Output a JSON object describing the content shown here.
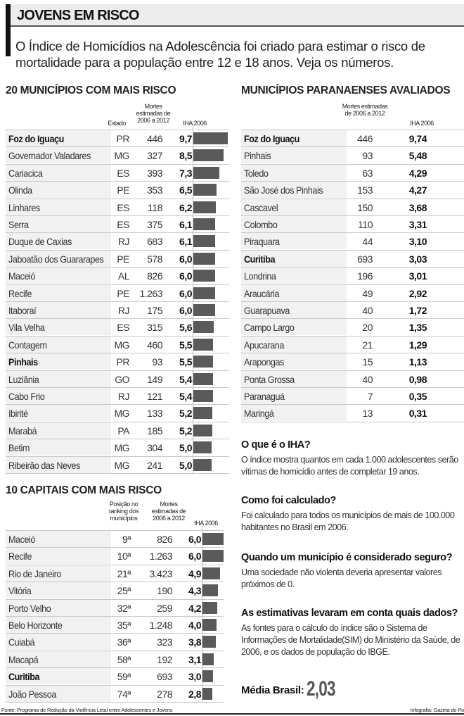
{
  "header": {
    "title": "JOVENS EM RISCO",
    "intro": "O Índice de Homicídios na Adolescência foi criado para estimar o risco de mortalidade para a população entre 12 e 18 anos. Veja os números."
  },
  "labels": {
    "estado": "Estado",
    "mortes": "Mortes estimadas de 2006 a 2012",
    "iha": "IHA 2006",
    "posicao": "Posição no ranking dos municípios"
  },
  "chart_data": [
    {
      "type": "bar",
      "title": "20 MUNICÍPIOS COM MAIS RISCO",
      "columns": [
        "",
        "Estado",
        "Mortes estimadas de 2006 a 2012",
        "IHA 2006"
      ],
      "rows": [
        {
          "name": "Foz do Iguaçu",
          "estado": "PR",
          "mortes": "446",
          "iha": "9,7",
          "value": 9.7,
          "bold": true
        },
        {
          "name": "Governador Valadares",
          "estado": "MG",
          "mortes": "327",
          "iha": "8,5",
          "value": 8.5
        },
        {
          "name": "Cariacica",
          "estado": "ES",
          "mortes": "393",
          "iha": "7,3",
          "value": 7.3
        },
        {
          "name": "Olinda",
          "estado": "PE",
          "mortes": "353",
          "iha": "6,5",
          "value": 6.5
        },
        {
          "name": "Linhares",
          "estado": "ES",
          "mortes": "118",
          "iha": "6,2",
          "value": 6.2
        },
        {
          "name": "Serra",
          "estado": "ES",
          "mortes": "375",
          "iha": "6,1",
          "value": 6.1
        },
        {
          "name": "Duque de Caxias",
          "estado": "RJ",
          "mortes": "683",
          "iha": "6,1",
          "value": 6.1
        },
        {
          "name": "Jaboatão dos Guararapes",
          "estado": "PE",
          "mortes": "578",
          "iha": "6,0",
          "value": 6.0
        },
        {
          "name": "Maceió",
          "estado": "AL",
          "mortes": "826",
          "iha": "6,0",
          "value": 6.0
        },
        {
          "name": "Recife",
          "estado": "PE",
          "mortes": "1.263",
          "iha": "6,0",
          "value": 6.0
        },
        {
          "name": "Itaboraí",
          "estado": "RJ",
          "mortes": "175",
          "iha": "6,0",
          "value": 6.0
        },
        {
          "name": "Vila Velha",
          "estado": "ES",
          "mortes": "315",
          "iha": "5,6",
          "value": 5.6
        },
        {
          "name": "Contagem",
          "estado": "MG",
          "mortes": "460",
          "iha": "5,5",
          "value": 5.5
        },
        {
          "name": "Pinhais",
          "estado": "PR",
          "mortes": "93",
          "iha": "5,5",
          "value": 5.5,
          "bold": true
        },
        {
          "name": "Luziânia",
          "estado": "GO",
          "mortes": "149",
          "iha": "5,4",
          "value": 5.4
        },
        {
          "name": "Cabo Frio",
          "estado": "RJ",
          "mortes": "121",
          "iha": "5,4",
          "value": 5.4
        },
        {
          "name": "Ibirité",
          "estado": "MG",
          "mortes": "133",
          "iha": "5,2",
          "value": 5.2
        },
        {
          "name": "Marabá",
          "estado": "PA",
          "mortes": "185",
          "iha": "5,2",
          "value": 5.2
        },
        {
          "name": "Betim",
          "estado": "MG",
          "mortes": "304",
          "iha": "5,0",
          "value": 5.0
        },
        {
          "name": "Ribeirão das Neves",
          "estado": "MG",
          "mortes": "241",
          "iha": "5,0",
          "value": 5.0
        }
      ]
    },
    {
      "type": "table",
      "title": "MUNICÍPIOS PARANAENSES AVALIADOS",
      "columns": [
        "",
        "Mortes estimadas de 2006 a 2012",
        "IHA 2006"
      ],
      "rows": [
        {
          "name": "Foz do Iguaçu",
          "mortes": "446",
          "iha": "9,74",
          "bold": true
        },
        {
          "name": "Pinhais",
          "mortes": "93",
          "iha": "5,48"
        },
        {
          "name": "Toledo",
          "mortes": "63",
          "iha": "4,29"
        },
        {
          "name": "São José dos Pinhais",
          "mortes": "153",
          "iha": "4,27"
        },
        {
          "name": "Cascavel",
          "mortes": "150",
          "iha": "3,68"
        },
        {
          "name": "Colombo",
          "mortes": "110",
          "iha": "3,31"
        },
        {
          "name": "Piraquara",
          "mortes": "44",
          "iha": "3,10"
        },
        {
          "name": "Curitiba",
          "mortes": "693",
          "iha": "3,03",
          "bold": true
        },
        {
          "name": "Londrina",
          "mortes": "196",
          "iha": "3,01"
        },
        {
          "name": "Araucária",
          "mortes": "49",
          "iha": "2,92"
        },
        {
          "name": "Guarapuava",
          "mortes": "40",
          "iha": "1,72"
        },
        {
          "name": "Campo Largo",
          "mortes": "20",
          "iha": "1,35"
        },
        {
          "name": "Apucarana",
          "mortes": "21",
          "iha": "1,29"
        },
        {
          "name": "Arapongas",
          "mortes": "15",
          "iha": "1,13"
        },
        {
          "name": "Ponta Grossa",
          "mortes": "40",
          "iha": "0,98"
        },
        {
          "name": "Paranaguá",
          "mortes": "7",
          "iha": "0,35"
        },
        {
          "name": "Maringá",
          "mortes": "13",
          "iha": "0,31"
        }
      ]
    },
    {
      "type": "bar",
      "title": "10 CAPITAIS COM MAIS RISCO",
      "columns": [
        "",
        "Posição no ranking dos municípios",
        "Mortes estimadas de 2006 a 2012",
        "IHA 2006"
      ],
      "rows": [
        {
          "name": "Maceió",
          "posicao": "9ª",
          "mortes": "826",
          "iha": "6,0",
          "value": 6.0
        },
        {
          "name": "Recife",
          "posicao": "10ª",
          "mortes": "1.263",
          "iha": "6,0",
          "value": 6.0
        },
        {
          "name": "Rio de Janeiro",
          "posicao": "21ª",
          "mortes": "3.423",
          "iha": "4,9",
          "value": 4.9
        },
        {
          "name": "Vitória",
          "posicao": "25ª",
          "mortes": "190",
          "iha": "4,3",
          "value": 4.3
        },
        {
          "name": "Porto Velho",
          "posicao": "32ª",
          "mortes": "259",
          "iha": "4,2",
          "value": 4.2
        },
        {
          "name": "Belo Horizonte",
          "posicao": "35ª",
          "mortes": "1.248",
          "iha": "4,0",
          "value": 4.0
        },
        {
          "name": "Cuiabá",
          "posicao": "36ª",
          "mortes": "323",
          "iha": "3,8",
          "value": 3.8
        },
        {
          "name": "Macapá",
          "posicao": "58ª",
          "mortes": "192",
          "iha": "3,1",
          "value": 3.1
        },
        {
          "name": "Curitiba",
          "posicao": "59ª",
          "mortes": "693",
          "iha": "3,0",
          "value": 3.0,
          "bold": true
        },
        {
          "name": "João Pessoa",
          "posicao": "74ª",
          "mortes": "278",
          "iha": "2,8",
          "value": 2.8
        }
      ]
    }
  ],
  "faq": [
    {
      "q": "O que é o IHA?",
      "a": "O índice mostra quantos em  cada 1.000 adolescentes serão vítimas de homicídio antes de completar 19 anos."
    },
    {
      "q": "Como foi calculado?",
      "a": "Foi calculado para todos os municípios de mais de 100.000 habitantes no Brasil em 2006."
    },
    {
      "q": "Quando um município é considerado seguro?",
      "a": "Uma sociedade não violenta deveria apresentar valores próximos de 0."
    },
    {
      "q": "As estimativas levaram em conta quais dados?",
      "a": "As fontes para o cálculo do índice são o Sistema de Informações de Mortalidade(SIM) do Ministério da Saúde, de 2006, e os dados de população do IBGE."
    }
  ],
  "media": {
    "label": "Média Brasil:",
    "value": "2,03"
  },
  "footer": {
    "fonte": "Fonte: Programa de Redução da Violência Letal entre Adolescentes e Jovens",
    "credito": "Infografia: Gazeta do Po"
  },
  "colors": {
    "bar": "#5a5a5a",
    "row_bg": "#f1f1f1",
    "title_bg": "#ececec"
  }
}
